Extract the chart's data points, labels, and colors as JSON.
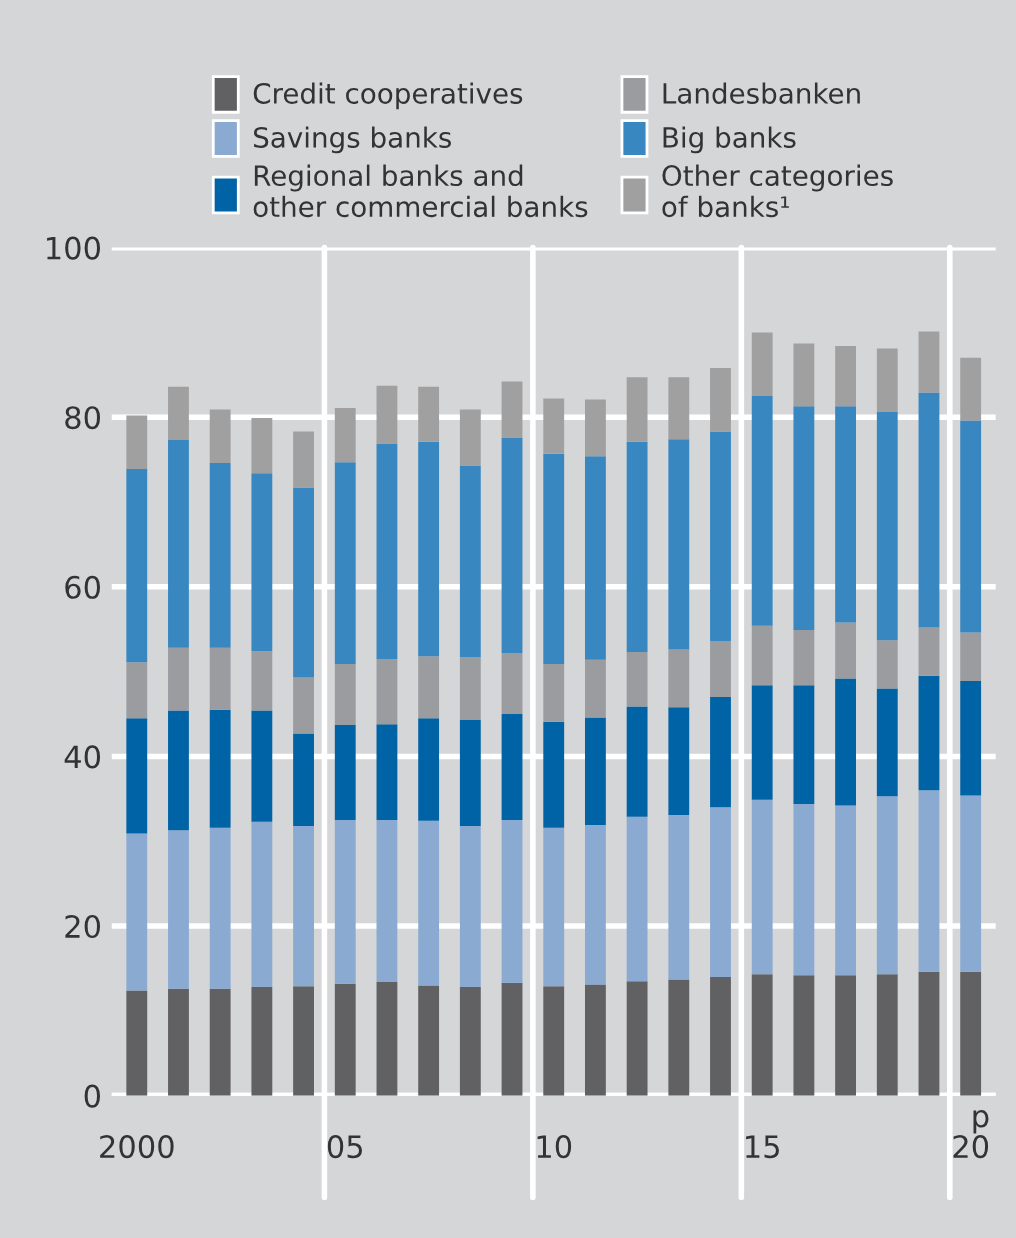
{
  "chart_data": {
    "type": "bar",
    "stacked": true,
    "categories": [
      "2000",
      null,
      null,
      null,
      null,
      "05",
      null,
      null,
      null,
      null,
      "10",
      null,
      null,
      null,
      null,
      "15",
      null,
      null,
      null,
      null,
      "20"
    ],
    "series": [
      {
        "name": "Credit cooperatives",
        "color": "#616163",
        "values": [
          12.4,
          12.6,
          12.6,
          12.8,
          12.9,
          13.2,
          13.4,
          13.0,
          12.8,
          13.3,
          12.9,
          13.1,
          13.5,
          13.7,
          14.0,
          14.3,
          14.2,
          14.2,
          14.3,
          14.6,
          14.6
        ]
      },
      {
        "name": "Savings banks",
        "color": "#8aaad2",
        "values": [
          18.5,
          18.7,
          19.0,
          19.5,
          18.9,
          19.3,
          19.1,
          19.4,
          19.0,
          19.2,
          18.7,
          18.8,
          19.4,
          19.4,
          20.0,
          20.6,
          20.2,
          20.0,
          21.0,
          21.4,
          20.8
        ]
      },
      {
        "name": "Regional banks and other commercial banks",
        "color": "#0063a6",
        "values": [
          13.6,
          14.1,
          13.9,
          13.1,
          10.9,
          11.2,
          11.3,
          12.1,
          12.5,
          12.5,
          12.5,
          12.7,
          13.0,
          12.7,
          13.0,
          13.5,
          14.0,
          15.0,
          12.7,
          13.5,
          13.5
        ]
      },
      {
        "name": "Landesbanken",
        "color": "#9a9ca0",
        "values": [
          6.6,
          7.4,
          7.3,
          7.0,
          6.6,
          7.2,
          7.7,
          7.3,
          7.4,
          7.2,
          6.8,
          6.8,
          6.4,
          6.8,
          6.6,
          7.0,
          6.5,
          6.6,
          5.7,
          5.7,
          5.7
        ]
      },
      {
        "name": "Big banks",
        "color": "#3887c0",
        "values": [
          22.8,
          24.5,
          21.8,
          21.0,
          22.4,
          23.8,
          25.4,
          25.3,
          22.6,
          25.4,
          24.8,
          24.0,
          24.8,
          24.8,
          24.7,
          27.1,
          26.4,
          25.5,
          26.9,
          27.7,
          25.0
        ]
      },
      {
        "name": "Other categories of banks¹",
        "color": "#a0a0a0",
        "values": [
          6.3,
          6.3,
          6.3,
          6.5,
          6.6,
          6.4,
          6.8,
          6.5,
          6.6,
          6.6,
          6.5,
          6.7,
          7.6,
          7.3,
          7.5,
          7.5,
          7.4,
          7.1,
          7.5,
          7.2,
          7.4
        ]
      }
    ],
    "ylim": [
      0,
      100
    ],
    "yticks": [
      0,
      20,
      40,
      60,
      80,
      100
    ],
    "grid": true,
    "legend": "top",
    "annotations": [
      "p"
    ]
  }
}
